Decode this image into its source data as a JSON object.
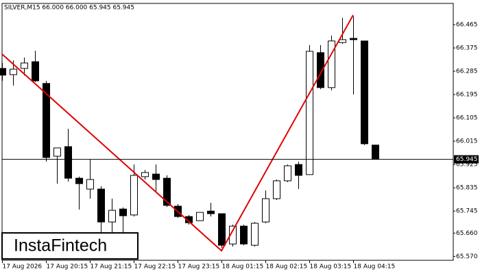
{
  "chart_data": {
    "type": "candlestick",
    "title": "SILVER,M15  66.000 66.000 65.945 65.945",
    "watermark": "InstaFintech",
    "categories": [
      "17 Aug 2026",
      null,
      null,
      null,
      "17 Aug 20:15",
      null,
      null,
      null,
      "17 Aug 21:15",
      null,
      null,
      null,
      "17 Aug 22:15",
      null,
      null,
      null,
      "17 Aug 23:15",
      null,
      null,
      null,
      "18 Aug 01:15",
      null,
      null,
      null,
      "18 Aug 02:15",
      null,
      null,
      null,
      "18 Aug 03:15",
      null,
      null,
      null,
      "18 Aug 04:15",
      null,
      null
    ],
    "open": [
      66.296,
      66.272,
      66.296,
      66.322,
      66.238,
      65.957,
      65.994,
      65.872,
      65.83,
      65.83,
      65.703,
      65.753,
      65.73,
      65.878,
      65.888,
      65.872,
      65.764,
      65.724,
      65.708,
      65.745,
      65.735,
      65.618,
      65.687,
      65.613,
      65.703,
      65.793,
      65.862,
      65.925,
      65.886,
      66.357,
      66.222,
      66.396,
      66.412,
      66.402,
      66.0
    ],
    "high": [
      66.317,
      66.327,
      66.338,
      66.364,
      66.248,
      65.989,
      66.063,
      65.878,
      65.946,
      65.841,
      65.793,
      65.759,
      65.925,
      65.904,
      65.925,
      65.883,
      65.772,
      65.73,
      65.74,
      65.777,
      65.735,
      65.693,
      65.693,
      65.703,
      65.825,
      65.867,
      65.925,
      65.936,
      66.386,
      66.386,
      66.423,
      66.491,
      66.497,
      66.402,
      66.0
    ],
    "low": [
      66.248,
      66.23,
      66.269,
      66.243,
      65.936,
      65.851,
      65.859,
      65.751,
      65.793,
      65.661,
      65.648,
      65.655,
      65.724,
      65.867,
      65.82,
      65.761,
      65.719,
      65.693,
      65.708,
      65.724,
      65.603,
      65.608,
      65.613,
      65.608,
      65.698,
      65.788,
      65.857,
      65.83,
      65.886,
      66.216,
      66.211,
      66.391,
      66.195,
      66.0,
      65.945
    ],
    "close": [
      66.27,
      66.293,
      66.317,
      66.248,
      65.952,
      65.989,
      65.872,
      65.851,
      65.867,
      65.703,
      65.748,
      65.727,
      65.883,
      65.894,
      65.867,
      65.767,
      65.724,
      65.7,
      65.74,
      65.735,
      65.613,
      65.687,
      65.618,
      65.698,
      65.793,
      65.862,
      65.92,
      65.883,
      66.362,
      66.222,
      66.402,
      66.407,
      66.407,
      66.005,
      65.945
    ],
    "last_price": 65.945,
    "ylim": [
      65.555,
      66.547
    ],
    "yticks": [
      66.465,
      66.375,
      66.285,
      66.195,
      66.105,
      66.015,
      65.925,
      65.835,
      65.745,
      {
        "value": 65.66,
        "label": "65.660"
      },
      {
        "value": 65.57,
        "label": "65.570"
      }
    ],
    "up_color": "#ffffff",
    "down_color": "#000000",
    "grid": false
  }
}
